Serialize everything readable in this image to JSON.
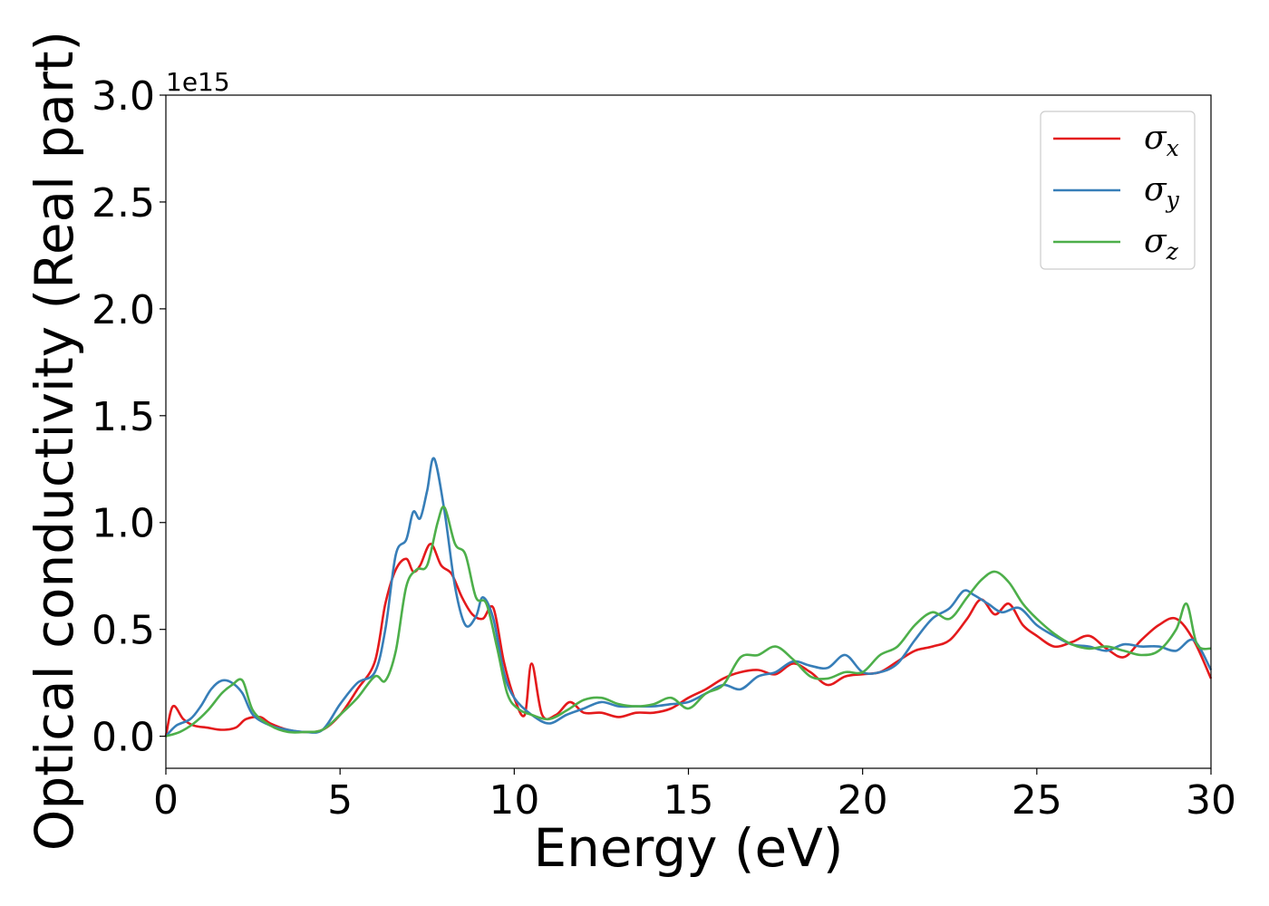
{
  "chart_data": {
    "type": "line",
    "xlabel": "Energy (eV)",
    "ylabel": "Optical conductivity (Real part)",
    "y_offset_label": "1e15",
    "xlim": [
      0,
      30
    ],
    "ylim": [
      -0.15,
      3.0
    ],
    "x_ticks": [
      0,
      5,
      10,
      15,
      20,
      25,
      30
    ],
    "y_ticks": [
      0.0,
      0.5,
      1.0,
      1.5,
      2.0,
      2.5,
      3.0
    ],
    "x_tick_labels": [
      "0",
      "5",
      "10",
      "15",
      "20",
      "25",
      "30"
    ],
    "y_tick_labels": [
      "0.0",
      "0.5",
      "1.0",
      "1.5",
      "2.0",
      "2.5",
      "3.0"
    ],
    "grid": false,
    "legend_position": "top-right",
    "series": [
      {
        "name": "σx",
        "symbol": "σ",
        "subscript": "x",
        "color": "#e41a1c",
        "x": [
          0,
          0.2,
          0.5,
          0.8,
          1.2,
          1.6,
          2.0,
          2.3,
          2.7,
          3.0,
          3.5,
          4.0,
          4.5,
          5.0,
          5.5,
          6.0,
          6.3,
          6.6,
          6.9,
          7.1,
          7.3,
          7.6,
          7.9,
          8.2,
          8.5,
          8.8,
          9.1,
          9.4,
          9.7,
          10.0,
          10.3,
          10.5,
          10.8,
          11.2,
          11.6,
          12.0,
          12.5,
          13.0,
          13.5,
          14.0,
          14.5,
          15.0,
          15.5,
          16.0,
          16.5,
          17.0,
          17.5,
          18.0,
          18.5,
          19.0,
          19.5,
          20.0,
          20.5,
          21.0,
          21.5,
          22.0,
          22.5,
          23.0,
          23.4,
          23.8,
          24.2,
          24.6,
          25.0,
          25.5,
          26.0,
          26.5,
          27.0,
          27.5,
          28.0,
          28.5,
          29.0,
          29.5,
          30.0
        ],
        "values": [
          0.0,
          0.14,
          0.08,
          0.05,
          0.04,
          0.03,
          0.04,
          0.08,
          0.09,
          0.06,
          0.03,
          0.02,
          0.03,
          0.1,
          0.22,
          0.35,
          0.62,
          0.78,
          0.83,
          0.77,
          0.8,
          0.9,
          0.8,
          0.76,
          0.65,
          0.57,
          0.55,
          0.6,
          0.35,
          0.18,
          0.1,
          0.34,
          0.1,
          0.1,
          0.16,
          0.11,
          0.11,
          0.09,
          0.11,
          0.11,
          0.13,
          0.18,
          0.22,
          0.27,
          0.3,
          0.31,
          0.29,
          0.34,
          0.3,
          0.24,
          0.28,
          0.29,
          0.3,
          0.35,
          0.4,
          0.42,
          0.45,
          0.55,
          0.64,
          0.57,
          0.62,
          0.52,
          0.47,
          0.42,
          0.44,
          0.47,
          0.41,
          0.37,
          0.45,
          0.52,
          0.55,
          0.45,
          0.27
        ]
      },
      {
        "name": "σy",
        "symbol": "σ",
        "subscript": "y",
        "color": "#377eb8",
        "x": [
          0,
          0.3,
          0.7,
          1.0,
          1.3,
          1.6,
          1.9,
          2.2,
          2.5,
          3.0,
          3.5,
          4.0,
          4.5,
          5.0,
          5.5,
          6.0,
          6.3,
          6.6,
          6.9,
          7.1,
          7.3,
          7.5,
          7.7,
          8.0,
          8.3,
          8.6,
          8.9,
          9.1,
          9.4,
          9.7,
          10.0,
          10.5,
          11.0,
          11.5,
          12.0,
          12.5,
          13.0,
          13.5,
          14.0,
          14.5,
          15.0,
          15.5,
          16.0,
          16.5,
          17.0,
          17.5,
          18.0,
          18.5,
          19.0,
          19.5,
          20.0,
          20.5,
          21.0,
          21.5,
          22.0,
          22.5,
          22.9,
          23.2,
          23.6,
          24.0,
          24.5,
          25.0,
          25.5,
          26.0,
          26.5,
          27.0,
          27.5,
          28.0,
          28.5,
          29.0,
          29.5,
          30.0
        ],
        "values": [
          0.0,
          0.05,
          0.08,
          0.14,
          0.22,
          0.26,
          0.25,
          0.2,
          0.1,
          0.05,
          0.03,
          0.02,
          0.03,
          0.15,
          0.25,
          0.3,
          0.5,
          0.85,
          0.92,
          1.05,
          1.02,
          1.15,
          1.3,
          1.05,
          0.7,
          0.52,
          0.56,
          0.65,
          0.55,
          0.3,
          0.18,
          0.1,
          0.06,
          0.1,
          0.13,
          0.16,
          0.14,
          0.14,
          0.14,
          0.15,
          0.16,
          0.2,
          0.24,
          0.22,
          0.28,
          0.3,
          0.35,
          0.33,
          0.32,
          0.38,
          0.3,
          0.3,
          0.34,
          0.45,
          0.55,
          0.6,
          0.68,
          0.66,
          0.62,
          0.58,
          0.6,
          0.52,
          0.47,
          0.43,
          0.42,
          0.4,
          0.43,
          0.42,
          0.42,
          0.4,
          0.45,
          0.31
        ]
      },
      {
        "name": "σz",
        "symbol": "σ",
        "subscript": "z",
        "color": "#4daf4a",
        "x": [
          0,
          0.4,
          0.8,
          1.2,
          1.6,
          1.9,
          2.2,
          2.5,
          3.0,
          3.5,
          4.0,
          4.5,
          5.0,
          5.5,
          6.0,
          6.3,
          6.6,
          6.9,
          7.2,
          7.5,
          7.8,
          8.0,
          8.3,
          8.6,
          8.9,
          9.2,
          9.5,
          9.8,
          10.1,
          10.5,
          11.0,
          11.5,
          12.0,
          12.5,
          13.0,
          13.5,
          14.0,
          14.5,
          15.0,
          15.5,
          16.0,
          16.5,
          17.0,
          17.5,
          18.0,
          18.5,
          19.0,
          19.5,
          20.0,
          20.5,
          21.0,
          21.5,
          22.0,
          22.5,
          23.0,
          23.4,
          23.8,
          24.2,
          24.6,
          25.0,
          25.5,
          26.0,
          26.5,
          27.0,
          27.5,
          28.0,
          28.5,
          29.0,
          29.3,
          29.6,
          30.0
        ],
        "values": [
          0.0,
          0.02,
          0.06,
          0.12,
          0.2,
          0.24,
          0.26,
          0.12,
          0.05,
          0.02,
          0.02,
          0.03,
          0.1,
          0.18,
          0.28,
          0.26,
          0.4,
          0.7,
          0.78,
          0.8,
          1.0,
          1.07,
          0.9,
          0.85,
          0.65,
          0.62,
          0.42,
          0.2,
          0.13,
          0.1,
          0.08,
          0.12,
          0.17,
          0.18,
          0.15,
          0.14,
          0.15,
          0.18,
          0.13,
          0.2,
          0.24,
          0.37,
          0.38,
          0.42,
          0.36,
          0.28,
          0.27,
          0.3,
          0.3,
          0.38,
          0.42,
          0.52,
          0.58,
          0.55,
          0.65,
          0.73,
          0.77,
          0.72,
          0.62,
          0.55,
          0.48,
          0.43,
          0.41,
          0.42,
          0.4,
          0.38,
          0.4,
          0.5,
          0.62,
          0.43,
          0.41
        ]
      }
    ]
  }
}
